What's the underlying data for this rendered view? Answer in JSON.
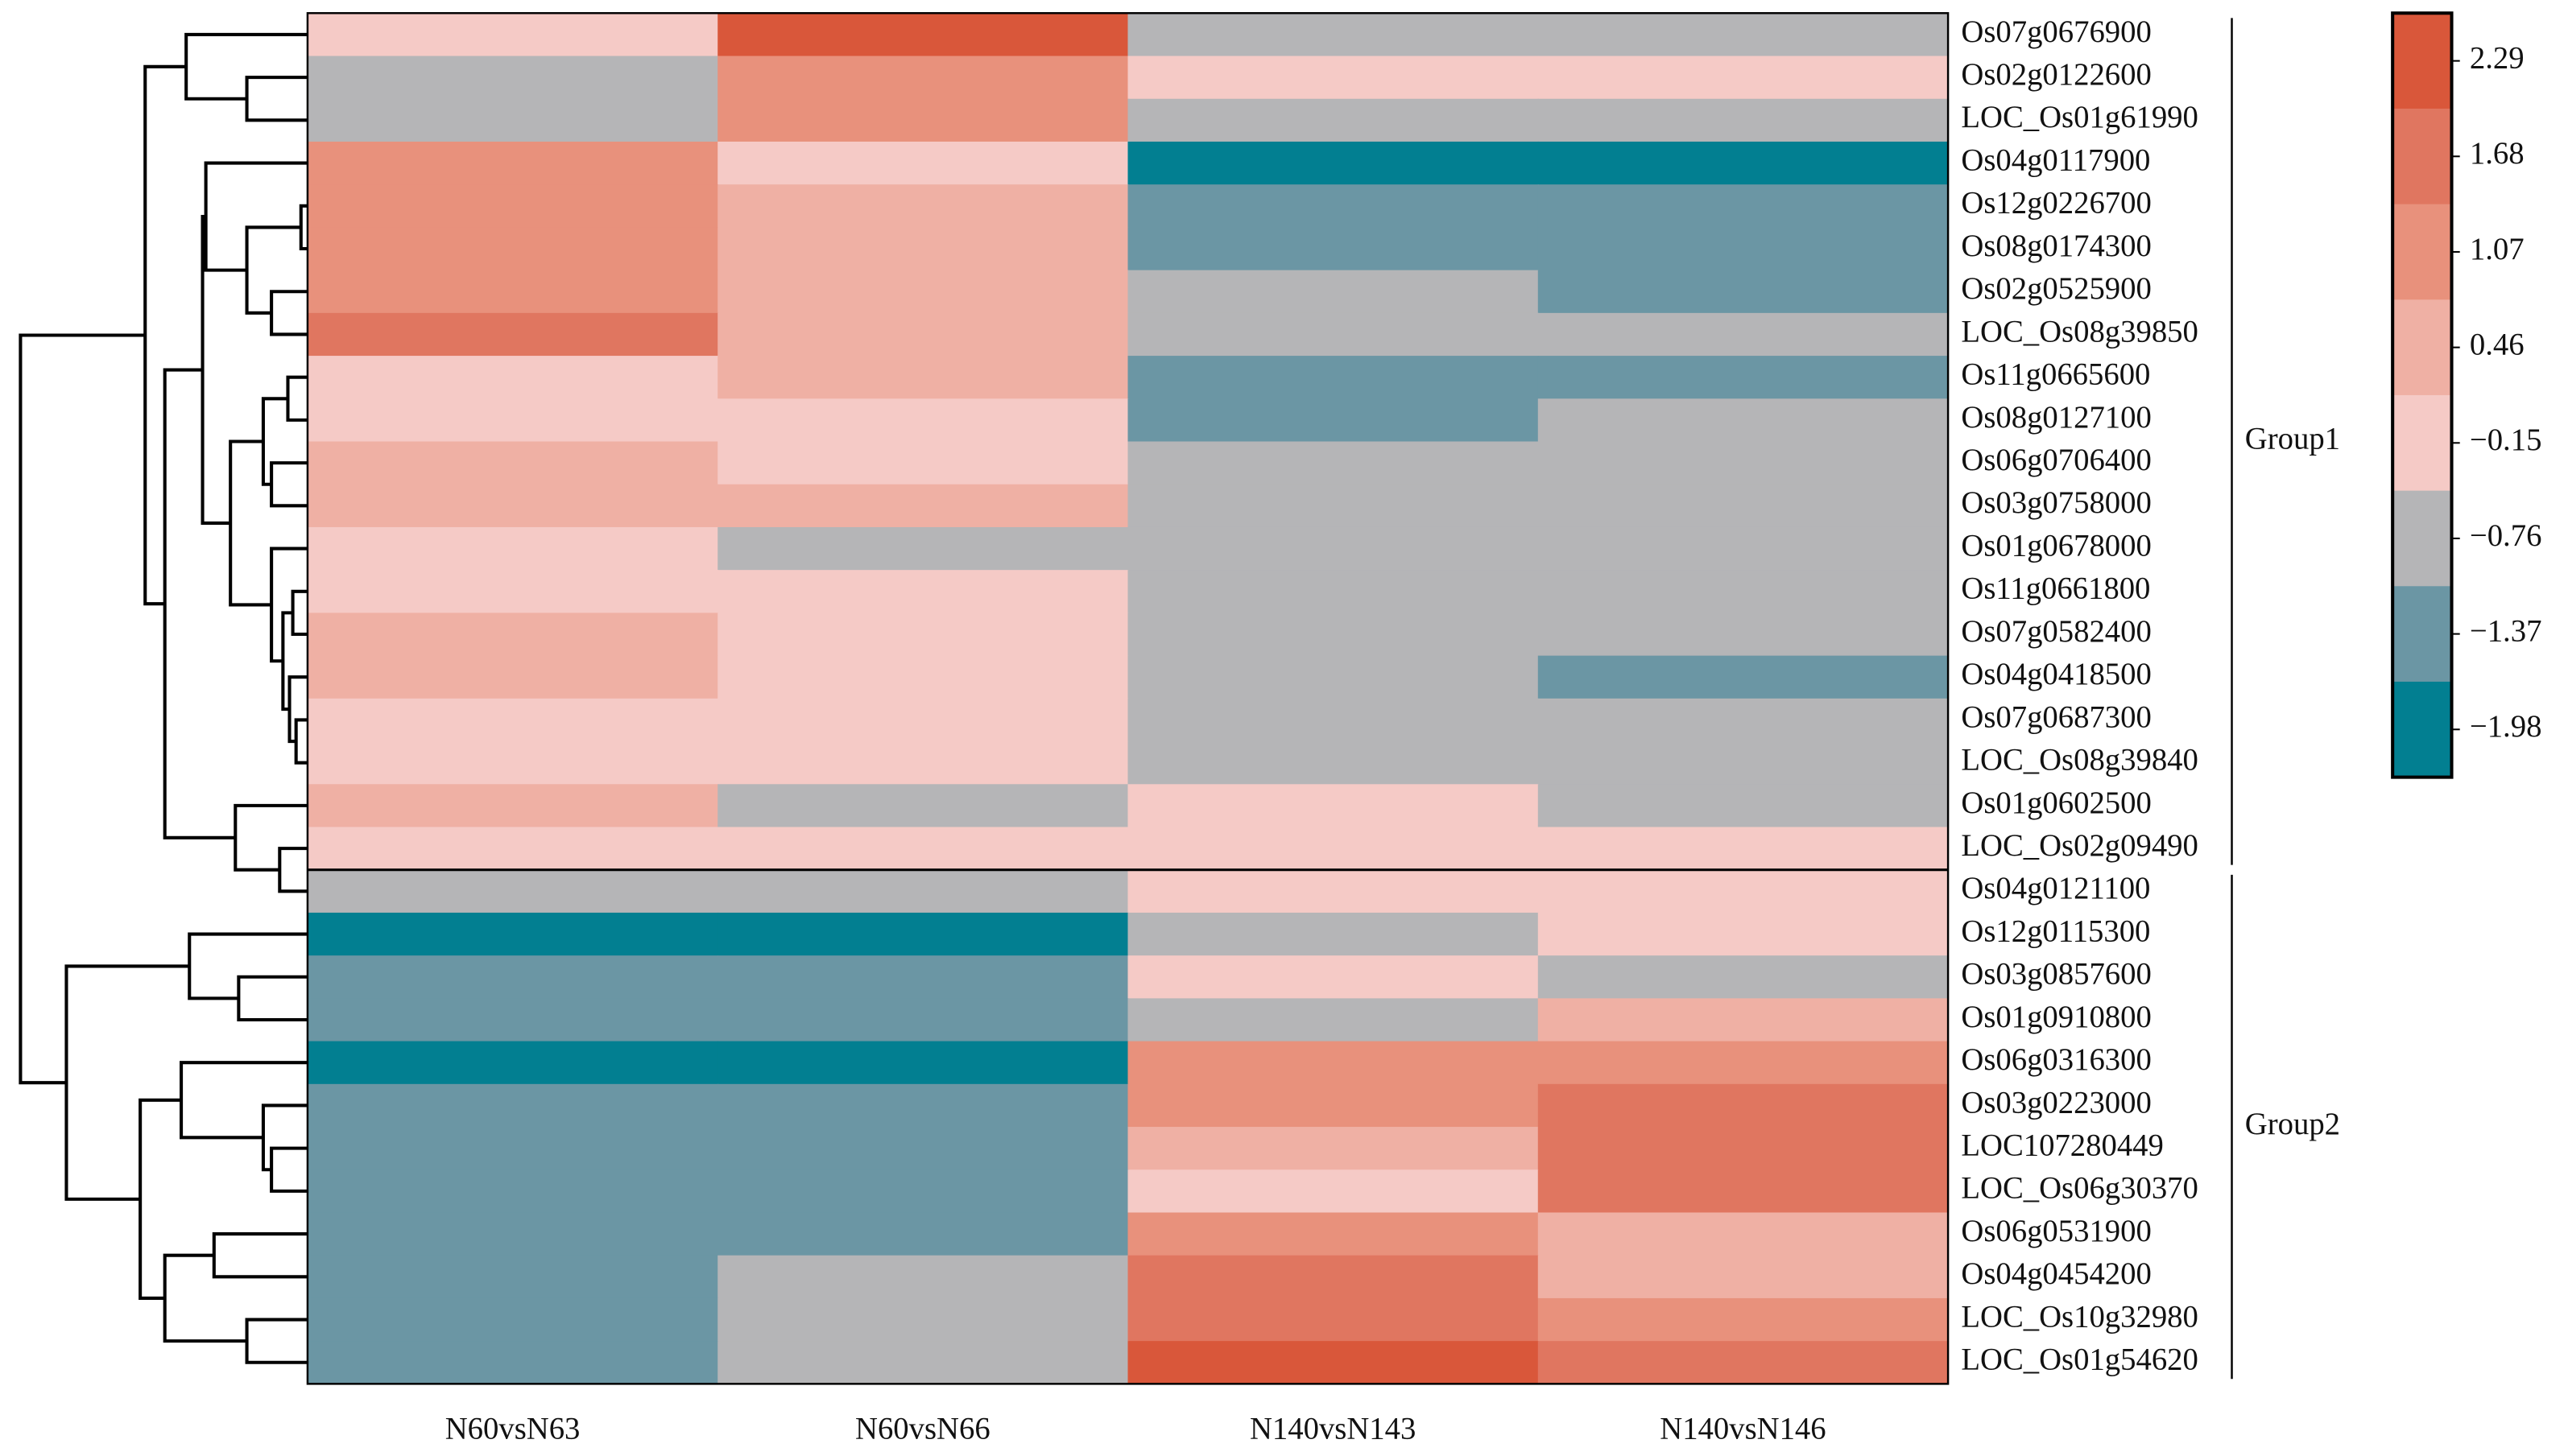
{
  "chart_data": {
    "type": "heatmap",
    "columns": [
      "N60vsN63",
      "N60vsN66",
      "N140vsN143",
      "N140vsN146"
    ],
    "rows": [
      "Os07g0676900",
      "Os02g0122600",
      "LOC_Os01g61990",
      "Os04g0117900",
      "Os12g0226700",
      "Os08g0174300",
      "Os02g0525900",
      "LOC_Os08g39850",
      "Os11g0665600",
      "Os08g0127100",
      "Os06g0706400",
      "Os03g0758000",
      "Os01g0678000",
      "Os11g0661800",
      "Os07g0582400",
      "Os04g0418500",
      "Os07g0687300",
      "LOC_Os08g39840",
      "Os01g0602500",
      "LOC_Os02g09490",
      "Os04g0121100",
      "Os12g0115300",
      "Os03g0857600",
      "Os01g0910800",
      "Os06g0316300",
      "Os03g0223000",
      "LOC107280449",
      "LOC_Os06g30370",
      "Os06g0531900",
      "Os04g0454200",
      "LOC_Os10g32980",
      "LOC_Os01g54620"
    ],
    "values": [
      [
        -0.15,
        2.29,
        -0.76,
        -0.76
      ],
      [
        -0.76,
        1.07,
        -0.15,
        -0.15
      ],
      [
        -0.76,
        1.07,
        -0.76,
        -0.76
      ],
      [
        1.07,
        -0.15,
        -1.98,
        -1.98
      ],
      [
        1.07,
        0.46,
        -1.37,
        -1.37
      ],
      [
        1.07,
        0.46,
        -1.37,
        -1.37
      ],
      [
        1.07,
        0.46,
        -0.76,
        -1.37
      ],
      [
        1.68,
        0.46,
        -0.76,
        -0.76
      ],
      [
        -0.15,
        0.46,
        -1.37,
        -1.37
      ],
      [
        -0.15,
        -0.15,
        -1.37,
        -0.76
      ],
      [
        0.46,
        -0.15,
        -0.76,
        -0.76
      ],
      [
        0.46,
        0.46,
        -0.76,
        -0.76
      ],
      [
        -0.15,
        -0.76,
        -0.76,
        -0.76
      ],
      [
        -0.15,
        -0.15,
        -0.76,
        -0.76
      ],
      [
        0.46,
        -0.15,
        -0.76,
        -0.76
      ],
      [
        0.46,
        -0.15,
        -0.76,
        -1.37
      ],
      [
        -0.15,
        -0.15,
        -0.76,
        -0.76
      ],
      [
        -0.15,
        -0.15,
        -0.76,
        -0.76
      ],
      [
        0.46,
        -0.76,
        -0.15,
        -0.76
      ],
      [
        -0.15,
        -0.15,
        -0.15,
        -0.15
      ],
      [
        -0.76,
        -0.76,
        -0.15,
        -0.15
      ],
      [
        -1.98,
        -1.98,
        -0.76,
        -0.15
      ],
      [
        -1.37,
        -1.37,
        -0.15,
        -0.76
      ],
      [
        -1.37,
        -1.37,
        -0.76,
        0.46
      ],
      [
        -1.98,
        -1.98,
        1.07,
        1.07
      ],
      [
        -1.37,
        -1.37,
        1.07,
        1.68
      ],
      [
        -1.37,
        -1.37,
        0.46,
        1.68
      ],
      [
        -1.37,
        -1.37,
        -0.15,
        1.68
      ],
      [
        -1.37,
        -1.37,
        1.07,
        0.46
      ],
      [
        -1.37,
        -0.76,
        1.68,
        0.46
      ],
      [
        -1.37,
        -0.76,
        1.68,
        1.07
      ],
      [
        -1.37,
        -0.76,
        2.29,
        1.68
      ]
    ],
    "groups": [
      {
        "name": "Group1",
        "start": 0,
        "end": 19
      },
      {
        "name": "Group2",
        "start": 20,
        "end": 31
      }
    ],
    "zlim": [
      -2.285,
      2.595
    ],
    "zticks": [
      2.29,
      1.68,
      1.07,
      0.46,
      {
        "value": -0.15,
        "label": "−0.15"
      },
      {
        "value": -0.76,
        "label": "−0.76"
      },
      {
        "value": -1.37,
        "label": "−1.37"
      },
      {
        "value": -1.98,
        "label": "−1.98"
      }
    ],
    "colors": [
      "#d9573a",
      "#e07660",
      "#e8917c",
      "#efb0a4",
      "#f5cac6",
      "#b5b5b7",
      "#6b96a4",
      "#027f91"
    ]
  }
}
